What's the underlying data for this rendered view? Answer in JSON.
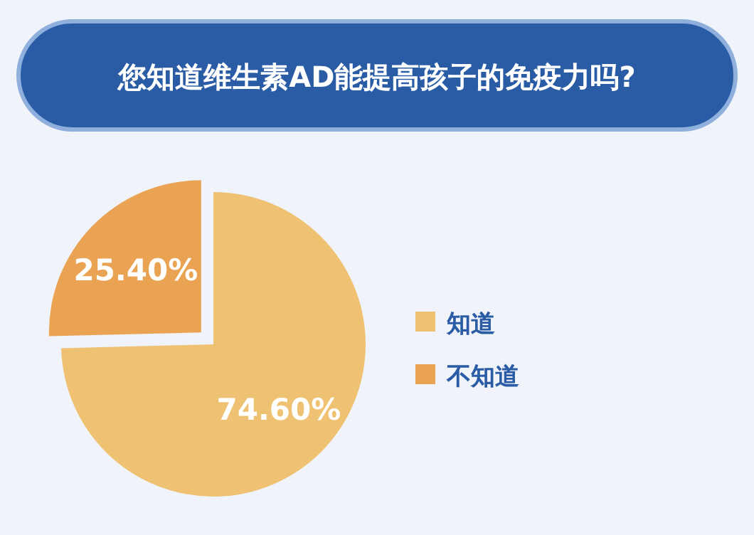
{
  "chart_data": {
    "type": "pie",
    "title": "您知道维生素AD能提高孩子的免疫力吗?",
    "categories": [
      "知道",
      "不知道"
    ],
    "values": [
      74.6,
      25.4
    ],
    "colors": [
      "#efc172",
      "#e9a352"
    ],
    "value_labels": [
      "74.60%",
      "25.40%"
    ],
    "legend": "right"
  }
}
